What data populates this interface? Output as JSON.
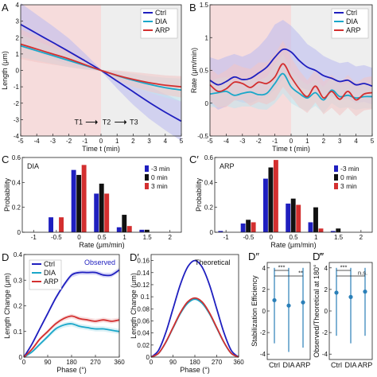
{
  "colors": {
    "ctrl": "#1f1fbf",
    "dia": "#1aa7c9",
    "arp": "#d32f2f",
    "black": "#111111",
    "pink_bg": "#f6dcdc",
    "gray_bg": "#eeeeee",
    "ctrl_band": "#b9b9f0",
    "dia_band": "#bfe5ef",
    "arp_band": "#f3c4c4"
  },
  "chart_data": [
    {
      "id": "A",
      "type": "line",
      "panel_label": "A",
      "xlabel": "Time t (min)",
      "ylabel": "Length (μm)",
      "xlim": [
        -5,
        5
      ],
      "ylim": [
        -4,
        4
      ],
      "xticks": [
        "-5",
        "-4",
        "-3",
        "-2",
        "-1",
        "0",
        "1",
        "2",
        "3",
        "4",
        "5"
      ],
      "yticks": [
        "-4",
        "-3",
        "-2",
        "-1",
        "0",
        "1",
        "2",
        "3",
        "4"
      ],
      "annotation": [
        "T1",
        "T2",
        "T3"
      ],
      "legend": [
        "Ctrl",
        "DIA",
        "ARP"
      ],
      "x": [
        -5,
        -4,
        -3,
        -2,
        -1,
        0,
        1,
        2,
        3,
        4,
        5
      ],
      "series": [
        {
          "name": "Ctrl",
          "values": [
            2.8,
            2.25,
            1.7,
            1.15,
            0.58,
            0,
            -0.65,
            -1.3,
            -1.95,
            -2.55,
            -3.1
          ],
          "band": [
            1.3,
            1.15,
            1.0,
            0.8,
            0.45,
            0.05,
            0.45,
            0.8,
            1.0,
            1.1,
            1.2
          ]
        },
        {
          "name": "DIA",
          "values": [
            1.5,
            1.2,
            0.9,
            0.6,
            0.3,
            0,
            -0.32,
            -0.6,
            -0.85,
            -1.05,
            -1.2
          ],
          "band": [
            0.7,
            0.6,
            0.5,
            0.4,
            0.25,
            0.03,
            0.25,
            0.4,
            0.5,
            0.6,
            0.7
          ]
        },
        {
          "name": "ARP",
          "values": [
            1.6,
            1.3,
            1.0,
            0.7,
            0.35,
            0,
            -0.3,
            -0.55,
            -0.75,
            -0.9,
            -1.0
          ],
          "band": [
            0.9,
            0.8,
            0.65,
            0.5,
            0.3,
            0.03,
            0.3,
            0.45,
            0.55,
            0.6,
            0.65
          ]
        }
      ]
    },
    {
      "id": "B",
      "type": "line",
      "panel_label": "B",
      "xlabel": "Time t (min)",
      "ylabel": "Rate (μm/min)",
      "xlim": [
        -5,
        5
      ],
      "ylim": [
        -0.5,
        1.5
      ],
      "xticks": [
        "-5",
        "-4",
        "-3",
        "-2",
        "-1",
        "0",
        "1",
        "2",
        "3",
        "4",
        "5"
      ],
      "yticks": [
        "-0.5",
        "0",
        "0.5",
        "1",
        "1.5"
      ],
      "legend": [
        "Ctrl",
        "DIA",
        "ARP"
      ],
      "x": [
        -5,
        -4.5,
        -4,
        -3.5,
        -3,
        -2.5,
        -2,
        -1.5,
        -1,
        -0.5,
        0,
        0.5,
        1,
        1.5,
        2,
        2.5,
        3,
        3.5,
        4,
        4.5,
        5
      ],
      "series": [
        {
          "name": "Ctrl",
          "values": [
            0.35,
            0.28,
            0.33,
            0.4,
            0.36,
            0.38,
            0.46,
            0.55,
            0.7,
            0.82,
            0.78,
            0.65,
            0.55,
            0.5,
            0.42,
            0.38,
            0.33,
            0.35,
            0.28,
            0.3,
            0.26
          ],
          "band": [
            0.35,
            0.38,
            0.38,
            0.35,
            0.35,
            0.38,
            0.4,
            0.45,
            0.5,
            0.45,
            0.4,
            0.4,
            0.35,
            0.32,
            0.3,
            0.28,
            0.28,
            0.28,
            0.28,
            0.28,
            0.28
          ]
        },
        {
          "name": "DIA",
          "values": [
            0.14,
            0.16,
            0.18,
            0.12,
            0.15,
            0.17,
            0.13,
            0.15,
            0.3,
            0.45,
            0.25,
            0.15,
            0.08,
            0.16,
            0.05,
            0.2,
            0.1,
            0.12,
            0.08,
            0.1,
            0.1
          ],
          "band": [
            0.2,
            0.22,
            0.22,
            0.2,
            0.2,
            0.22,
            0.22,
            0.25,
            0.3,
            0.3,
            0.25,
            0.22,
            0.2,
            0.2,
            0.2,
            0.2,
            0.18,
            0.18,
            0.18,
            0.18,
            0.18
          ]
        },
        {
          "name": "ARP",
          "values": [
            0.28,
            0.18,
            0.22,
            0.32,
            0.3,
            0.24,
            0.32,
            0.3,
            0.4,
            0.6,
            0.4,
            0.22,
            0.1,
            0.26,
            0.08,
            0.18,
            0.06,
            0.18,
            0.05,
            0.14,
            0.16
          ],
          "band": [
            0.25,
            0.25,
            0.28,
            0.28,
            0.25,
            0.28,
            0.3,
            0.32,
            0.35,
            0.35,
            0.3,
            0.28,
            0.25,
            0.25,
            0.25,
            0.25,
            0.25,
            0.25,
            0.25,
            0.25,
            0.25
          ]
        }
      ]
    },
    {
      "id": "C",
      "type": "bar",
      "panel_label": "C",
      "inset_label": "DIA",
      "xlabel": "Rate (μm/min)",
      "ylabel": "Probability",
      "xlim": [
        -1.25,
        2.25
      ],
      "ylim": [
        0,
        0.6
      ],
      "xticks": [
        "-1",
        "-0.5",
        "0",
        "0.5",
        "1",
        "1.5",
        "2"
      ],
      "yticks": [
        "0",
        "0.2",
        "0.4",
        "0.6"
      ],
      "legend": [
        "-3 min",
        "0 min",
        "3 min"
      ],
      "categories": [
        "-0.5",
        "0",
        "0.5",
        "1",
        "1.5"
      ],
      "series": [
        {
          "name": "-3 min",
          "values": [
            0.12,
            0.5,
            0.31,
            0.04,
            0.02
          ]
        },
        {
          "name": "0 min",
          "values": [
            0.0,
            0.46,
            0.39,
            0.14,
            0.02
          ]
        },
        {
          "name": "3 min",
          "values": [
            0.12,
            0.54,
            0.31,
            0.05,
            0.0
          ]
        }
      ]
    },
    {
      "id": "C2",
      "type": "bar",
      "panel_label": "C′",
      "inset_label": "ARP",
      "xlabel": "Rate (μm/min)",
      "ylabel": "Probability",
      "xlim": [
        -1.25,
        2.25
      ],
      "ylim": [
        0,
        0.6
      ],
      "xticks": [
        "-1",
        "-0.5",
        "0",
        "0.5",
        "1",
        "1.5",
        "2"
      ],
      "yticks": [
        "0",
        "0.2",
        "0.4",
        "0.6"
      ],
      "legend": [
        "-3 min",
        "0 min",
        "3 min"
      ],
      "categories": [
        "-1",
        "-0.5",
        "0",
        "0.5",
        "1",
        "1.5"
      ],
      "series": [
        {
          "name": "-3 min",
          "values": [
            0.01,
            0.07,
            0.43,
            0.23,
            0.08,
            0.01
          ]
        },
        {
          "name": "0 min",
          "values": [
            0.0,
            0.1,
            0.52,
            0.27,
            0.2,
            0.03
          ]
        },
        {
          "name": "3 min",
          "values": [
            0.0,
            0.08,
            0.58,
            0.22,
            0.03,
            0.0
          ]
        }
      ]
    },
    {
      "id": "D",
      "type": "line",
      "panel_label": "D",
      "inset_label": "Observed",
      "xlabel": "Phase (°)",
      "ylabel": "Length Change (μm)",
      "xlim": [
        0,
        360
      ],
      "ylim": [
        0,
        0.4
      ],
      "xticks": [
        "0",
        "90",
        "180",
        "270",
        "360"
      ],
      "yticks": [
        "0",
        "0.1",
        "0.2",
        "0.3",
        "0.4"
      ],
      "legend": [
        "Ctrl",
        "DIA",
        "ARP"
      ],
      "x": [
        0,
        30,
        60,
        90,
        120,
        150,
        180,
        210,
        240,
        270,
        300,
        330,
        360
      ],
      "series": [
        {
          "name": "Ctrl",
          "values": [
            0.0,
            0.05,
            0.11,
            0.17,
            0.23,
            0.28,
            0.32,
            0.33,
            0.33,
            0.33,
            0.32,
            0.32,
            0.34
          ],
          "band": [
            0.005,
            0.005,
            0.006,
            0.007,
            0.008,
            0.008,
            0.009,
            0.009,
            0.009,
            0.009,
            0.009,
            0.009,
            0.009
          ]
        },
        {
          "name": "DIA",
          "values": [
            0.0,
            0.02,
            0.05,
            0.08,
            0.11,
            0.125,
            0.13,
            0.12,
            0.115,
            0.11,
            0.11,
            0.105,
            0.1
          ],
          "band": [
            0.005,
            0.006,
            0.007,
            0.008,
            0.009,
            0.01,
            0.01,
            0.01,
            0.01,
            0.01,
            0.01,
            0.01,
            0.01
          ]
        },
        {
          "name": "ARP",
          "values": [
            0.0,
            0.03,
            0.07,
            0.1,
            0.13,
            0.15,
            0.16,
            0.15,
            0.145,
            0.14,
            0.145,
            0.14,
            0.145
          ],
          "band": [
            0.005,
            0.006,
            0.007,
            0.008,
            0.009,
            0.009,
            0.009,
            0.009,
            0.009,
            0.009,
            0.009,
            0.009,
            0.009
          ]
        }
      ]
    },
    {
      "id": "D2",
      "type": "line",
      "panel_label": "D′",
      "inset_label": "Theoretical",
      "xlabel": "Phase (°)",
      "ylabel": "Length Change (μm)",
      "xlim": [
        0,
        360
      ],
      "ylim": [
        0,
        0.17
      ],
      "xticks": [
        "0",
        "90",
        "180",
        "270",
        "360"
      ],
      "yticks": [
        "0",
        "0.02",
        "0.04",
        "0.06",
        "0.08",
        "0.1",
        "0.12",
        "0.14",
        "0.16"
      ],
      "x": [
        0,
        30,
        60,
        90,
        120,
        150,
        180,
        210,
        240,
        270,
        300,
        330,
        360
      ],
      "series": [
        {
          "name": "Ctrl",
          "values": [
            0.0,
            0.011,
            0.04,
            0.08,
            0.12,
            0.149,
            0.16,
            0.149,
            0.12,
            0.08,
            0.04,
            0.011,
            0.0
          ]
        },
        {
          "name": "DIA",
          "values": [
            0.0,
            0.006,
            0.024,
            0.048,
            0.072,
            0.089,
            0.096,
            0.089,
            0.072,
            0.048,
            0.024,
            0.006,
            0.0
          ]
        },
        {
          "name": "ARP",
          "values": [
            0.0,
            0.0062,
            0.0245,
            0.049,
            0.0735,
            0.0915,
            0.098,
            0.0915,
            0.0735,
            0.049,
            0.0245,
            0.0062,
            0.0
          ]
        }
      ]
    },
    {
      "id": "D3",
      "type": "scatter",
      "panel_label": "D″",
      "ylabel": "Stabilization Efficiency",
      "ylim": [
        -4.5,
        4.5
      ],
      "yticks": [
        "-4",
        "-2",
        "0",
        "2",
        "4"
      ],
      "categories": [
        "Ctrl",
        "DIA",
        "ARP"
      ],
      "values": [
        1.0,
        0.5,
        0.8
      ],
      "err_low": [
        -3.0,
        -3.8,
        -3.4
      ],
      "err_high": [
        4.0,
        4.0,
        4.0
      ],
      "significance": [
        "***",
        "**"
      ]
    },
    {
      "id": "D4",
      "type": "scatter",
      "panel_label": "D‴",
      "ylabel": "Observed/Theoretical at 180°",
      "ylim": [
        -4.5,
        4.5
      ],
      "yticks": [
        "-4",
        "-2",
        "0",
        "2",
        "4"
      ],
      "categories": [
        "Ctrl",
        "DIA",
        "ARP"
      ],
      "values": [
        1.7,
        1.3,
        1.8
      ],
      "err_low": [
        -2.3,
        -3.0,
        -2.3
      ],
      "err_high": [
        4.0,
        4.0,
        4.0
      ],
      "significance": [
        "***",
        "n.s."
      ]
    }
  ]
}
